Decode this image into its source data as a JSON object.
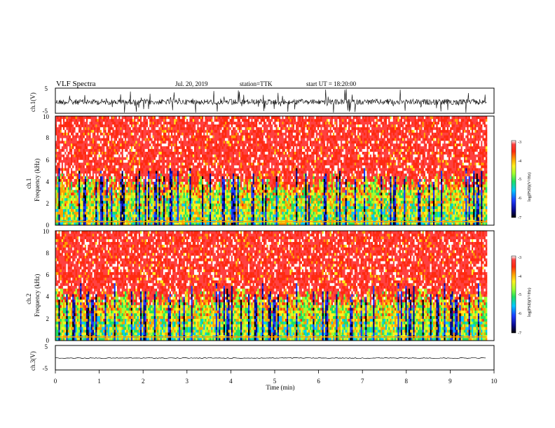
{
  "header": {
    "title": "VLF Spectra",
    "date": "Jul. 20, 2019",
    "station": "station=TTK",
    "start": "start UT = 18:20:00"
  },
  "colors": {
    "colormap": [
      "#000000",
      "#0a0a90",
      "#1e3cff",
      "#00c8ff",
      "#20e060",
      "#a0ff30",
      "#fff020",
      "#ffa000",
      "#ff2a10",
      "#ff4040",
      "#ffffff"
    ],
    "waveform": "#000000"
  },
  "chart_data": [
    {
      "type": "line",
      "name": "ch1-waveform",
      "ylabel": "ch.1(V)",
      "ylim": [
        -5,
        5
      ],
      "yticks": [
        "5",
        "-5"
      ],
      "xlim": [
        0,
        10
      ],
      "description_of_signal": "noisy burst waveform, baseline near 0 V with frequent spikes to ±5 V"
    },
    {
      "type": "heatmap",
      "name": "ch1-spectrogram",
      "ylabel": "ch.1\nFrequency (kHz)",
      "ylim": [
        0,
        10
      ],
      "yticks": [
        "0",
        "2",
        "4",
        "6",
        "8",
        "10"
      ],
      "xlim": [
        0,
        10
      ],
      "colorbar": {
        "label": "log(PSD)(V²/Hz)",
        "range": [
          -7,
          -3
        ],
        "ticks": [
          "-3",
          "-4",
          "-5",
          "-6",
          "-7"
        ]
      }
    },
    {
      "type": "heatmap",
      "name": "ch2-spectrogram",
      "ylabel": "ch.2\nFrequency (kHz)",
      "ylim": [
        0,
        10
      ],
      "yticks": [
        "0",
        "2",
        "4",
        "6",
        "8",
        "10"
      ],
      "xlim": [
        0,
        10
      ],
      "colorbar": {
        "label": "log(PSD)(V²/Hz)",
        "range": [
          -7,
          -3
        ],
        "ticks": [
          "-3",
          "-4",
          "-5",
          "-6",
          "-7"
        ]
      }
    },
    {
      "type": "line",
      "name": "ch3-waveform",
      "ylabel": "ch.3(V)",
      "ylim": [
        -5,
        5
      ],
      "yticks": [
        "5",
        "-5"
      ],
      "xlim": [
        0,
        10
      ],
      "description_of_signal": "nearly flat trace at about -1 V"
    }
  ],
  "xaxis": {
    "label": "Time (min)",
    "range": [
      0,
      10
    ],
    "ticks": [
      "0",
      "1",
      "2",
      "3",
      "4",
      "5",
      "6",
      "7",
      "8",
      "9",
      "10"
    ]
  }
}
